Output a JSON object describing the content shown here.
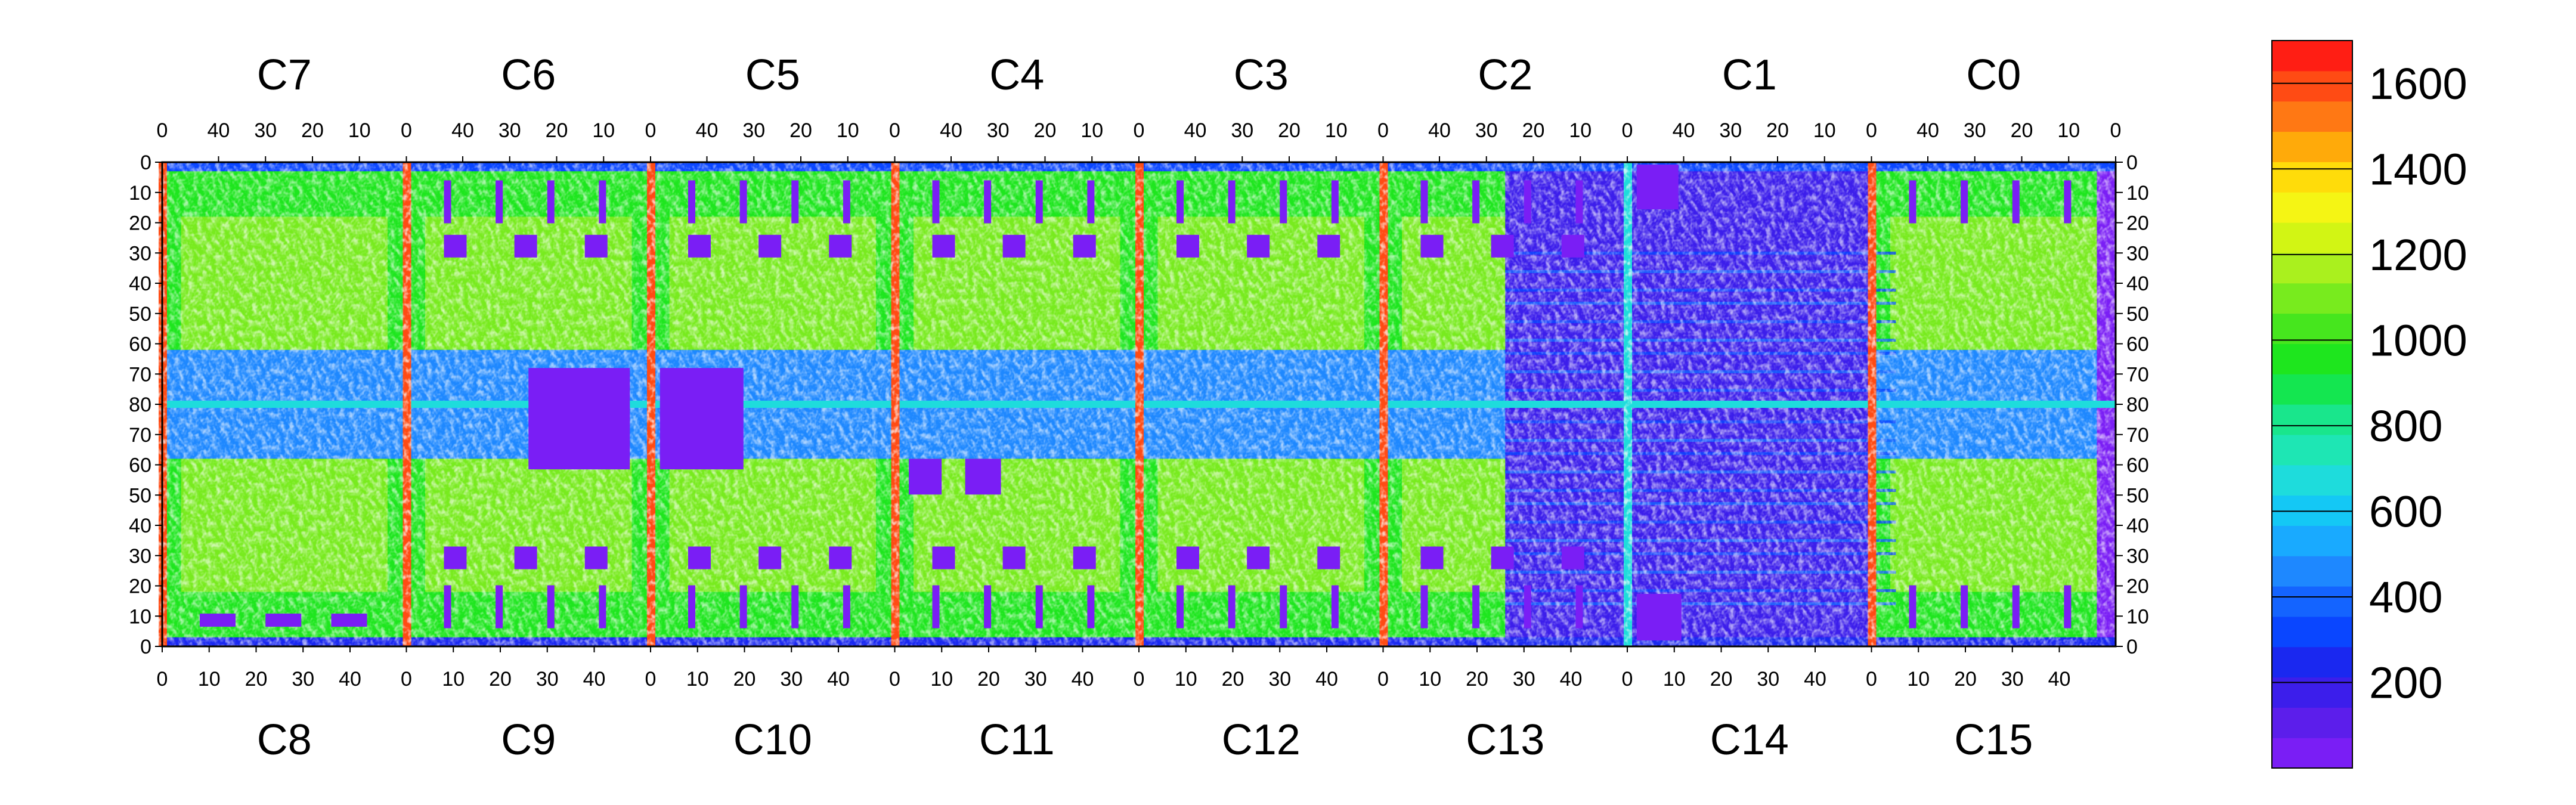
{
  "chart_data": {
    "type": "heatmap",
    "title": "",
    "top_chip_labels": [
      "C7",
      "C6",
      "C5",
      "C4",
      "C3",
      "C2",
      "C1",
      "C0"
    ],
    "bottom_chip_labels": [
      "C8",
      "C9",
      "C10",
      "C11",
      "C12",
      "C13",
      "C14",
      "C15"
    ],
    "top_column_ticks": [
      "40",
      "30",
      "20",
      "10",
      "0"
    ],
    "first_top_tick": "0",
    "bottom_column_ticks": [
      "0",
      "10",
      "20",
      "30",
      "40"
    ],
    "columns_per_chip": 52,
    "rows_per_half": 80,
    "row_ticks": [
      "0",
      "10",
      "20",
      "30",
      "40",
      "50",
      "60",
      "70",
      "80",
      "70",
      "60",
      "50",
      "40",
      "30",
      "20",
      "10",
      "0"
    ],
    "colorbar": {
      "min": 0,
      "max": 1700,
      "tick_values": [
        200,
        400,
        600,
        800,
        1000,
        1200,
        1400,
        1600
      ],
      "tick_labels": [
        "200",
        "400",
        "600",
        "800",
        "1000",
        "1200",
        "1400",
        "1600"
      ],
      "levels": [
        "#7a1ef5",
        "#5c1eeb",
        "#3c1eeb",
        "#1a28f0",
        "#0a46ff",
        "#1464ff",
        "#1e88ff",
        "#19aaff",
        "#14c8f5",
        "#1edcdc",
        "#1ee6b4",
        "#19e68c",
        "#14e650",
        "#1ee61e",
        "#46e61e",
        "#78eb1e",
        "#aaf01e",
        "#d2f514",
        "#f5f514",
        "#ffdc0a",
        "#ffaa0a",
        "#ff7814",
        "#ff4b14",
        "#ff1e14"
      ]
    },
    "regions": [
      {
        "chips": "C7-C2 / C8-C12",
        "typical_level": "green-yellow (about 800-1300) with blue horizontal bands near rows 65-80"
      },
      {
        "chips": "C1 / C14 and right half of C13",
        "typical_level": "blue-purple (about 100-300) with lighter horizontal streaks"
      },
      {
        "chips": "C0 / C15",
        "typical_level": "green upper/lower areas, purple right edge"
      }
    ]
  }
}
